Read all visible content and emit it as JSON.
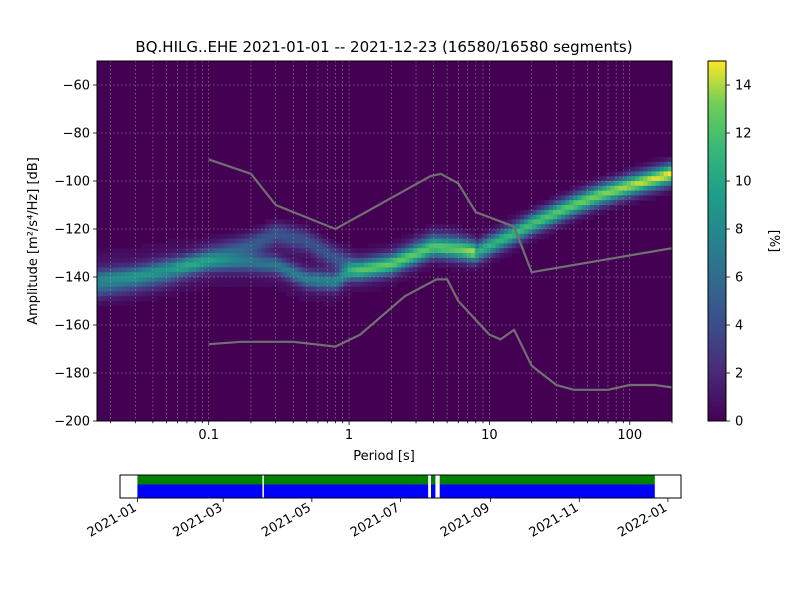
{
  "chart_data": {
    "type": "heatmap",
    "title": "BQ.HILG..EHE   2021-01-01 -- 2021-12-23  (16580/16580 segments)",
    "xlabel": "Period [s]",
    "ylabel": "Amplitude [m²/s⁴/Hz] [dB]",
    "x_scale": "log",
    "xlim": [
      0.016,
      200
    ],
    "ylim": [
      -200,
      -50
    ],
    "x_ticks": [
      {
        "value": 0.1,
        "label": "0.1"
      },
      {
        "value": 1,
        "label": "1"
      },
      {
        "value": 10,
        "label": "10"
      },
      {
        "value": 100,
        "label": "100"
      }
    ],
    "y_ticks": [
      {
        "value": -60,
        "label": "−60"
      },
      {
        "value": -80,
        "label": "−80"
      },
      {
        "value": -100,
        "label": "−100"
      },
      {
        "value": -120,
        "label": "−120"
      },
      {
        "value": -140,
        "label": "−140"
      },
      {
        "value": -160,
        "label": "−160"
      },
      {
        "value": -180,
        "label": "−180"
      },
      {
        "value": -200,
        "label": "−200"
      }
    ],
    "grid": true,
    "colorbar": {
      "label": "[%]",
      "range": [
        0,
        15
      ],
      "colormap": "viridis",
      "ticks": [
        {
          "value": 0,
          "label": "0"
        },
        {
          "value": 2,
          "label": "2"
        },
        {
          "value": 4,
          "label": "4"
        },
        {
          "value": 6,
          "label": "6"
        },
        {
          "value": 8,
          "label": "8"
        },
        {
          "value": 10,
          "label": "10"
        },
        {
          "value": 12,
          "label": "12"
        },
        {
          "value": 14,
          "label": "14"
        }
      ]
    },
    "density_ridges": [
      {
        "points": [
          [
            0.016,
            -140
          ],
          [
            0.03,
            -139
          ],
          [
            0.05,
            -136
          ],
          [
            0.1,
            -134
          ],
          [
            0.2,
            -134
          ],
          [
            0.3,
            -135
          ],
          [
            0.5,
            -141
          ],
          [
            0.8,
            -142
          ],
          [
            1.0,
            -138
          ],
          [
            2,
            -135
          ],
          [
            4,
            -128
          ],
          [
            6,
            -129
          ],
          [
            8,
            -130
          ],
          [
            10,
            -127
          ],
          [
            15,
            -122
          ],
          [
            20,
            -118
          ],
          [
            40,
            -110
          ],
          [
            60,
            -106
          ],
          [
            100,
            -102
          ],
          [
            200,
            -97
          ]
        ],
        "peak_percent": 15
      },
      {
        "points": [
          [
            0.016,
            -144
          ],
          [
            0.05,
            -139
          ],
          [
            0.1,
            -132
          ],
          [
            0.2,
            -127
          ],
          [
            0.3,
            -122
          ],
          [
            0.5,
            -125
          ],
          [
            0.8,
            -132
          ],
          [
            1.2,
            -137
          ],
          [
            2,
            -134
          ],
          [
            4,
            -125
          ],
          [
            6,
            -126
          ],
          [
            8,
            -129
          ]
        ],
        "peak_percent": 5
      }
    ],
    "reference_models": [
      {
        "points": [
          [
            0.1,
            -91
          ],
          [
            0.2,
            -97
          ],
          [
            0.3,
            -110
          ],
          [
            0.8,
            -120
          ],
          [
            3.8,
            -98
          ],
          [
            4.5,
            -97
          ],
          [
            6,
            -101
          ],
          [
            8,
            -113
          ],
          [
            15,
            -119
          ],
          [
            20,
            -138
          ],
          [
            200,
            -128
          ]
        ]
      },
      {
        "points": [
          [
            0.1,
            -168
          ],
          [
            0.17,
            -167
          ],
          [
            0.4,
            -167
          ],
          [
            0.8,
            -169
          ],
          [
            1.2,
            -164
          ],
          [
            2.5,
            -148
          ],
          [
            4.2,
            -141
          ],
          [
            5,
            -141
          ],
          [
            6,
            -150
          ],
          [
            10,
            -164
          ],
          [
            12,
            -166
          ],
          [
            15,
            -162
          ],
          [
            20,
            -177
          ],
          [
            30,
            -185
          ],
          [
            40,
            -187
          ],
          [
            70,
            -187
          ],
          [
            100,
            -185
          ],
          [
            150,
            -185
          ],
          [
            200,
            -186
          ]
        ]
      }
    ],
    "data_coverage": {
      "date_range": [
        "2020-12-20",
        "2022-01-10"
      ],
      "x_ticks": [
        "2021-01",
        "2021-03",
        "2021-05",
        "2021-07",
        "2021-09",
        "2021-11",
        "2022-01"
      ],
      "segments": [
        [
          "2021-01-01",
          "2021-03-28"
        ],
        [
          "2021-03-29",
          "2021-07-20"
        ],
        [
          "2021-07-22",
          "2021-07-25"
        ],
        [
          "2021-07-28",
          "2021-12-23"
        ]
      ]
    }
  }
}
